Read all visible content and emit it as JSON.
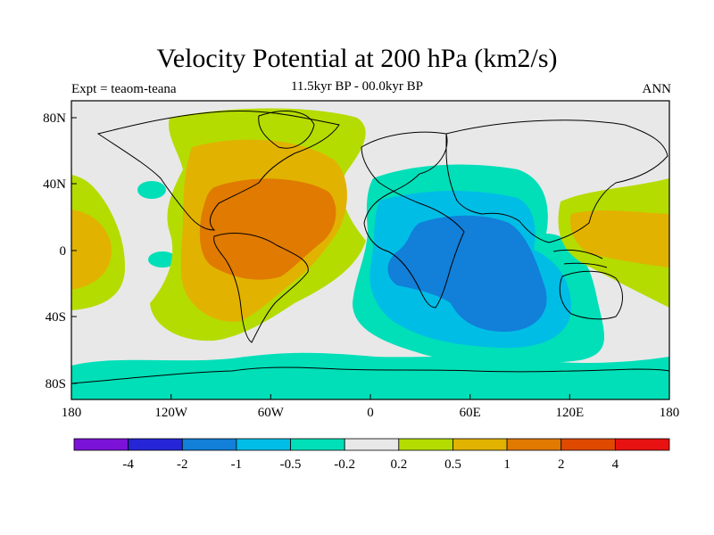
{
  "title": "Velocity Potential at 200 hPa (km2/s)",
  "subtitle": "11.5kyr BP - 00.0kyr BP",
  "left_label": "Expt = teaom-teana",
  "right_label": "ANN",
  "x_ticks": [
    "180",
    "120W",
    "60W",
    "0",
    "60E",
    "120E",
    "180"
  ],
  "y_ticks": [
    "80N",
    "40N",
    "0",
    "40S",
    "80S"
  ],
  "colorbar": {
    "colors": [
      "#7b12d8",
      "#2626d6",
      "#127fd8",
      "#00bde6",
      "#00dfb8",
      "#e8e8e8",
      "#b4dc00",
      "#e2b200",
      "#e07a00",
      "#e04a00",
      "#e81212"
    ],
    "labels": [
      "-4",
      "-2",
      "-1",
      "-0.5",
      "-0.2",
      "0.2",
      "0.5",
      "1",
      "2",
      "4"
    ]
  }
}
